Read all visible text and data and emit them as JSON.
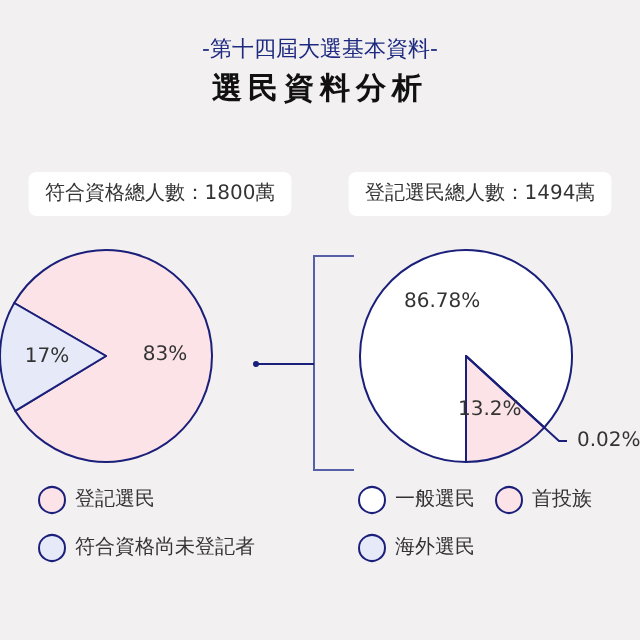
{
  "chart_data": [
    {
      "type": "pie",
      "title": "符合資格總人數：1800萬",
      "annotations": [
        "-第十四屆大選基本資料-",
        "選民資料分析"
      ],
      "categories": [
        "登記選民",
        "符合資格尚未登記者"
      ],
      "values": [
        83,
        17
      ],
      "colors": [
        "#fbe3e7",
        "#e6e9f8"
      ],
      "value_labels": [
        "83%",
        "17%"
      ],
      "legend": "bottom"
    },
    {
      "type": "pie",
      "title": "登記選民總人數：1494萬",
      "categories": [
        "一般選民",
        "首投族",
        "海外選民"
      ],
      "values": [
        86.78,
        13.2,
        0.02
      ],
      "colors": [
        "#ffffff",
        "#fbe3e7",
        "#e6e9f8"
      ],
      "value_labels": [
        "86.78%",
        "13.2%",
        "0.02%"
      ],
      "legend": "bottom"
    }
  ]
}
